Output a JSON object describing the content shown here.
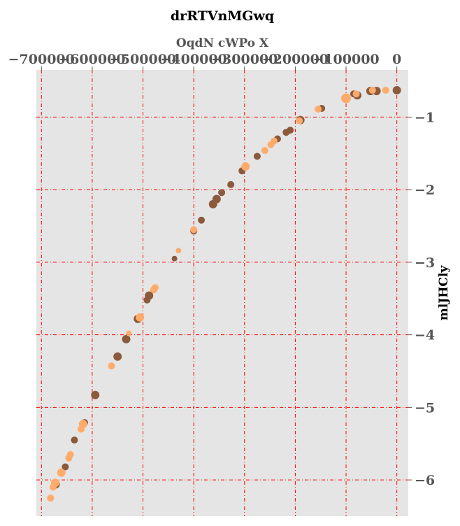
{
  "chart_data": {
    "type": "scatter",
    "title": "drRTVnMGwq",
    "xlabel": "OqdN cWPo X",
    "ylabel": "mlJHCly",
    "x_axis_position": "top",
    "y_axis_position": "right",
    "xlim": [
      -700000,
      0
    ],
    "ylim": [
      -6.5,
      -0.35
    ],
    "x_ticks": [
      -700000,
      -600000,
      -500000,
      -400000,
      -300000,
      -200000,
      -100000,
      0
    ],
    "x_tick_labels": [
      "−700000",
      "−600000",
      "−500000",
      "−400000",
      "−300000",
      "−200000",
      "−100000",
      "0"
    ],
    "y_ticks": [
      -6,
      -5,
      -4,
      -3,
      -2,
      -1
    ],
    "y_tick_labels": [
      "−6",
      "−5",
      "−4",
      "−3",
      "−2",
      "−1"
    ],
    "grid": true,
    "colors": {
      "background": "#e5e5e5",
      "grid": "#ff0000",
      "series_dark": "#8b5a3c",
      "series_light": "#ffab6b"
    },
    "series": [
      {
        "color": "#8b5a3c",
        "points": [
          {
            "x": 0,
            "y": -0.63,
            "s": 6
          },
          {
            "x": -40000,
            "y": -0.64,
            "s": 6
          },
          {
            "x": -52000,
            "y": -0.64,
            "s": 6
          },
          {
            "x": -78000,
            "y": -0.7,
            "s": 6
          },
          {
            "x": -85000,
            "y": -0.68,
            "s": 5
          },
          {
            "x": -148000,
            "y": -0.88,
            "s": 5
          },
          {
            "x": -190000,
            "y": -1.04,
            "s": 6
          },
          {
            "x": -210000,
            "y": -1.18,
            "s": 5
          },
          {
            "x": -218000,
            "y": -1.21,
            "s": 5
          },
          {
            "x": -235000,
            "y": -1.3,
            "s": 5
          },
          {
            "x": -275000,
            "y": -1.54,
            "s": 5
          },
          {
            "x": -305000,
            "y": -1.74,
            "s": 5
          },
          {
            "x": -327000,
            "y": -1.93,
            "s": 5
          },
          {
            "x": -345000,
            "y": -2.04,
            "s": 5
          },
          {
            "x": -355000,
            "y": -2.13,
            "s": 6
          },
          {
            "x": -362000,
            "y": -2.2,
            "s": 6
          },
          {
            "x": -385000,
            "y": -2.42,
            "s": 5
          },
          {
            "x": -400000,
            "y": -2.57,
            "s": 5
          },
          {
            "x": -438000,
            "y": -2.95,
            "s": 4
          },
          {
            "x": -488000,
            "y": -3.46,
            "s": 6
          },
          {
            "x": -492000,
            "y": -3.52,
            "s": 5
          },
          {
            "x": -510000,
            "y": -3.78,
            "s": 6
          },
          {
            "x": -533000,
            "y": -4.06,
            "s": 6
          },
          {
            "x": -550000,
            "y": -4.3,
            "s": 6
          },
          {
            "x": -594000,
            "y": -4.83,
            "s": 6
          },
          {
            "x": -615000,
            "y": -5.21,
            "s": 5
          },
          {
            "x": -635000,
            "y": -5.45,
            "s": 5
          },
          {
            "x": -653000,
            "y": -5.82,
            "s": 5
          },
          {
            "x": -672000,
            "y": -6.06,
            "s": 6
          }
        ]
      },
      {
        "color": "#ffab6b",
        "points": [
          {
            "x": -22000,
            "y": -0.63,
            "s": 5
          },
          {
            "x": -48000,
            "y": -0.63,
            "s": 5
          },
          {
            "x": -80000,
            "y": -0.68,
            "s": 5
          },
          {
            "x": -100000,
            "y": -0.74,
            "s": 7
          },
          {
            "x": -155000,
            "y": -0.89,
            "s": 5
          },
          {
            "x": -192000,
            "y": -1.05,
            "s": 5
          },
          {
            "x": -242000,
            "y": -1.33,
            "s": 5
          },
          {
            "x": -248000,
            "y": -1.38,
            "s": 5
          },
          {
            "x": -260000,
            "y": -1.46,
            "s": 5
          },
          {
            "x": -298000,
            "y": -1.68,
            "s": 6
          },
          {
            "x": -400000,
            "y": -2.55,
            "s": 5
          },
          {
            "x": -430000,
            "y": -2.84,
            "s": 4
          },
          {
            "x": -476000,
            "y": -3.35,
            "s": 5
          },
          {
            "x": -479000,
            "y": -3.38,
            "s": 5
          },
          {
            "x": -506000,
            "y": -3.76,
            "s": 6
          },
          {
            "x": -528000,
            "y": -3.98,
            "s": 4
          },
          {
            "x": -562000,
            "y": -4.43,
            "s": 5
          },
          {
            "x": -618000,
            "y": -5.23,
            "s": 6
          },
          {
            "x": -622000,
            "y": -5.3,
            "s": 5
          },
          {
            "x": -643000,
            "y": -5.65,
            "s": 5
          },
          {
            "x": -646000,
            "y": -5.7,
            "s": 5
          },
          {
            "x": -661000,
            "y": -5.9,
            "s": 6
          },
          {
            "x": -673000,
            "y": -6.04,
            "s": 6
          },
          {
            "x": -677000,
            "y": -6.1,
            "s": 5
          },
          {
            "x": -682000,
            "y": -6.25,
            "s": 5
          }
        ]
      }
    ]
  }
}
